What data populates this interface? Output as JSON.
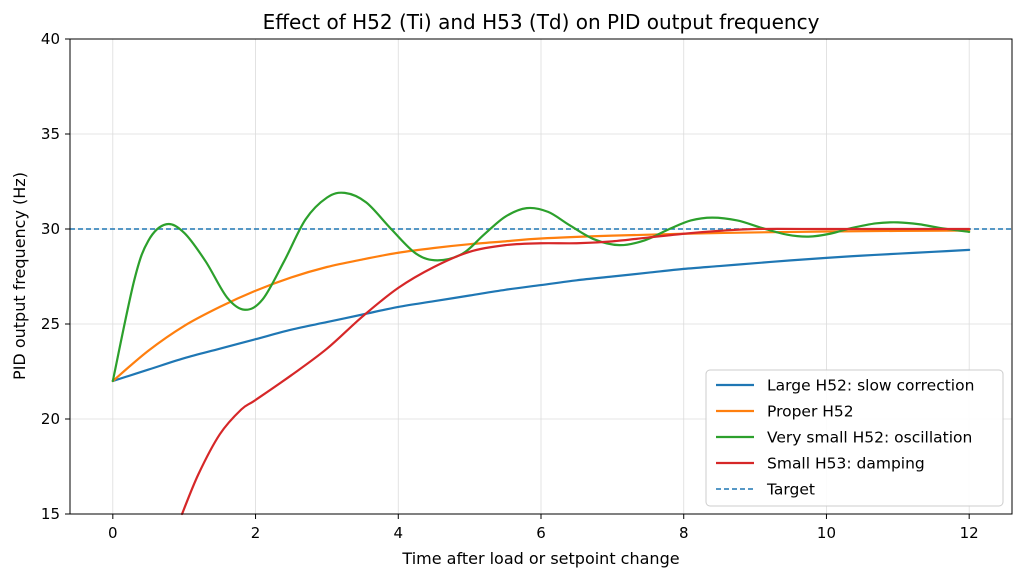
{
  "chart_data": {
    "type": "line",
    "title": "Effect of H52 (Ti) and H53 (Td) on PID output frequency",
    "xlabel": "Time after load or setpoint change",
    "ylabel": "PID output frequency (Hz)",
    "xlim": [
      -0.6,
      12.6
    ],
    "ylim": [
      15,
      40
    ],
    "xticks": [
      0,
      2,
      4,
      6,
      8,
      10,
      12
    ],
    "yticks": [
      15,
      20,
      25,
      30,
      35,
      40
    ],
    "grid": true,
    "legend_position": "lower-right",
    "series": [
      {
        "name": "Large H52: slow correction",
        "color": "#1f77b4",
        "x": [
          0,
          0.5,
          1,
          1.5,
          2,
          2.5,
          3,
          3.5,
          4,
          4.5,
          5,
          5.5,
          6,
          6.5,
          7,
          7.5,
          8,
          8.5,
          9,
          9.5,
          10,
          10.5,
          11,
          11.5,
          12
        ],
        "y": [
          22.0,
          22.6,
          23.2,
          23.7,
          24.2,
          24.7,
          25.1,
          25.5,
          25.9,
          26.2,
          26.5,
          26.8,
          27.05,
          27.3,
          27.5,
          27.7,
          27.9,
          28.05,
          28.2,
          28.35,
          28.48,
          28.6,
          28.7,
          28.8,
          28.9
        ]
      },
      {
        "name": "Proper H52",
        "color": "#ff7f0e",
        "x": [
          0,
          0.5,
          1,
          1.5,
          2,
          2.5,
          3,
          3.5,
          4,
          4.5,
          5,
          5.5,
          6,
          7,
          8,
          9,
          10,
          11,
          12
        ],
        "y": [
          22.0,
          23.6,
          24.9,
          25.9,
          26.75,
          27.45,
          28.0,
          28.4,
          28.75,
          29.0,
          29.2,
          29.35,
          29.5,
          29.65,
          29.75,
          29.82,
          29.87,
          29.9,
          29.92
        ]
      },
      {
        "name": "Very small H52: oscillation",
        "color": "#2ca02c",
        "x": [
          0,
          0.3,
          0.5,
          0.75,
          1.0,
          1.3,
          1.6,
          1.85,
          2.1,
          2.4,
          2.7,
          3.0,
          3.25,
          3.55,
          3.9,
          4.25,
          4.55,
          4.9,
          5.2,
          5.5,
          5.8,
          6.1,
          6.4,
          6.75,
          7.1,
          7.45,
          7.8,
          8.1,
          8.4,
          8.75,
          9.1,
          9.45,
          9.75,
          10.05,
          10.35,
          10.7,
          11.0,
          11.3,
          11.6,
          12.0
        ],
        "y": [
          22.0,
          27.3,
          29.4,
          30.25,
          29.8,
          28.3,
          26.4,
          25.75,
          26.3,
          28.3,
          30.5,
          31.65,
          31.9,
          31.4,
          30.0,
          28.7,
          28.35,
          28.7,
          29.7,
          30.65,
          31.1,
          30.9,
          30.2,
          29.45,
          29.15,
          29.4,
          30.0,
          30.45,
          30.6,
          30.45,
          30.05,
          29.7,
          29.6,
          29.75,
          30.05,
          30.3,
          30.35,
          30.25,
          30.05,
          29.85
        ]
      },
      {
        "name": "Small H53: damping",
        "color": "#d62728",
        "x": [
          0.97,
          1.2,
          1.5,
          1.8,
          2.0,
          2.5,
          3.0,
          3.5,
          4.0,
          4.5,
          5.0,
          5.5,
          6.0,
          6.5,
          7.0,
          7.5,
          8.0,
          8.5,
          9.0,
          10.0,
          11.0,
          12.0
        ],
        "y": [
          15.0,
          17.1,
          19.2,
          20.5,
          21.0,
          22.3,
          23.7,
          25.4,
          26.9,
          28.0,
          28.8,
          29.15,
          29.25,
          29.25,
          29.35,
          29.55,
          29.75,
          29.9,
          30.0,
          30.0,
          30.0,
          30.0
        ]
      }
    ],
    "reference_lines": [
      {
        "name": "Target",
        "y": 30,
        "color": "#1f77b4",
        "style": "dashed"
      }
    ]
  }
}
